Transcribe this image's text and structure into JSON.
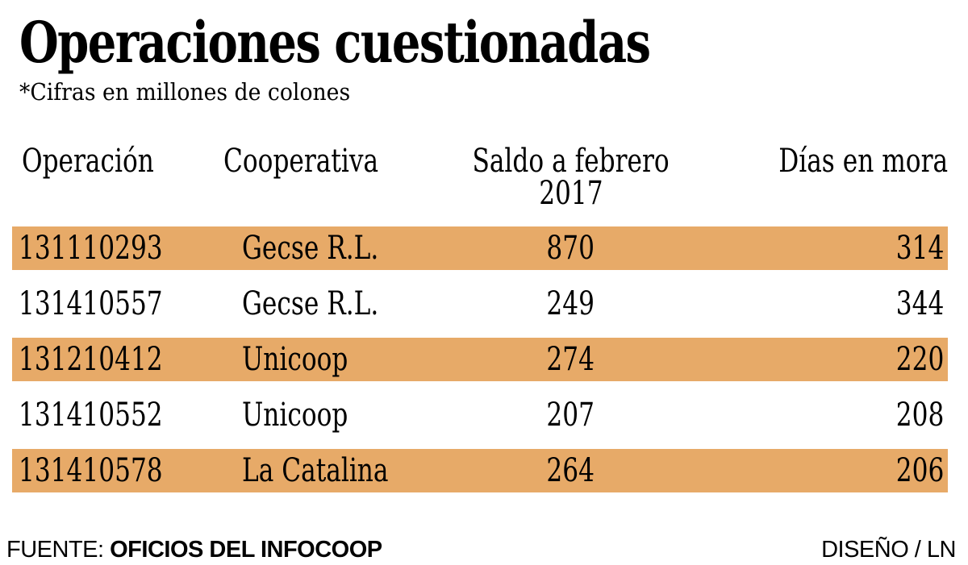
{
  "page": {
    "title": "Operaciones cuestionadas",
    "subtitle": "*Cifras en millones de colones",
    "header": {
      "col1": "Operación",
      "col2": "Cooperativa",
      "col3_line1": "Saldo a febrero",
      "col3_line2": "2017",
      "col4": "Días en mora"
    },
    "footer": {
      "source_label": "FUENTE: ",
      "source_value": "OFICIOS DEL INFOCOOP",
      "credit": "DISEÑO / LN"
    }
  },
  "colors": {
    "highlight_orange": "#e7aa68",
    "text": "#000000",
    "background": "#ffffff"
  },
  "chart_data": {
    "type": "table",
    "title": "Operaciones cuestionadas",
    "note": "*Cifras en millones de colones",
    "columns": [
      "Operación",
      "Cooperativa",
      "Saldo a febrero 2017",
      "Días en mora"
    ],
    "rows": [
      [
        "131110293",
        "Gecse R.L.",
        870,
        314
      ],
      [
        "131410557",
        "Gecse R.L.",
        249,
        344
      ],
      [
        "131210412",
        "Unicoop",
        274,
        220
      ],
      [
        "131410552",
        "Unicoop",
        207,
        208
      ],
      [
        "131410578",
        "La Catalina",
        264,
        206
      ]
    ],
    "highlighted_row_indices": [
      0,
      2,
      4
    ],
    "units": "millones de colones (Saldo)",
    "source": "OFICIOS DEL INFOCOOP",
    "credit": "DISEÑO / LN"
  }
}
